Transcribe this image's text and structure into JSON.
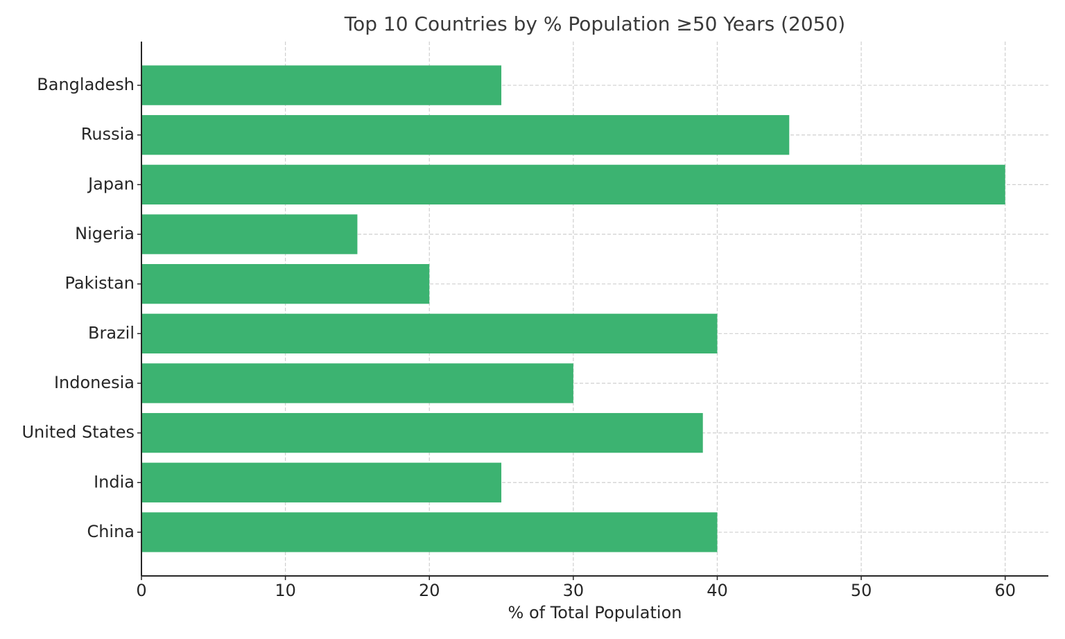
{
  "chart_data": {
    "type": "barh",
    "title": "Top 10 Countries by % Population ≥50 Years (2050)",
    "x_label": "% of Total Population",
    "categories": [
      "China",
      "India",
      "United States",
      "Indonesia",
      "Brazil",
      "Pakistan",
      "Nigeria",
      "Japan",
      "Russia",
      "Bangladesh"
    ],
    "values": [
      40,
      25,
      39,
      30,
      40,
      20,
      15,
      60,
      45,
      25
    ],
    "color": "#3cb371",
    "xlim": [
      0,
      63
    ],
    "xticks": [
      0,
      10,
      20,
      30,
      40,
      50,
      60
    ],
    "grid": true
  }
}
